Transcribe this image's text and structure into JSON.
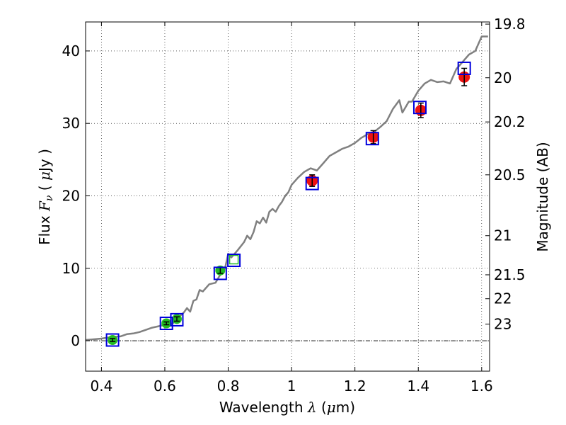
{
  "chart_data": {
    "type": "scatter",
    "xlabel": {
      "prefix": "Wavelength  ",
      "symbol": "λ",
      "unit_open": " (",
      "unit_mu": "μ",
      "unit_close": "m)"
    },
    "ylabel": {
      "prefix": "Flux  ",
      "symbol": "F",
      "subscript": "ν",
      "unit_open": "  (  ",
      "unit_mu": "μ",
      "unit_close": "Jy  )"
    },
    "ylabel_right": "Magnitude (AB)",
    "xlim": [
      0.35,
      1.625
    ],
    "ylim": [
      -4.2,
      44.0
    ],
    "grid": true,
    "x_ticks": [
      0.4,
      0.6,
      0.8,
      1.0,
      1.2,
      1.4,
      1.6
    ],
    "x_tick_labels": [
      "0.4",
      "0.6",
      "0.8",
      "1",
      "1.2",
      "1.4",
      "1.6"
    ],
    "y_ticks": [
      0,
      10,
      20,
      30,
      40
    ],
    "y_tick_labels": [
      "0",
      "10",
      "20",
      "30",
      "40"
    ],
    "mag_ticks": [
      {
        "label": "19.8",
        "flux": 43.7
      },
      {
        "label": "20",
        "flux": 36.3
      },
      {
        "label": "20.2",
        "flux": 30.2
      },
      {
        "label": "20.5",
        "flux": 22.9
      },
      {
        "label": "21",
        "flux": 14.5
      },
      {
        "label": "21.5",
        "flux": 9.1
      },
      {
        "label": "22",
        "flux": 5.8
      },
      {
        "label": "23",
        "flux": 2.3
      }
    ],
    "model_spectrum": {
      "color": "#808080",
      "x": [
        0.35,
        0.4,
        0.43,
        0.46,
        0.48,
        0.5,
        0.52,
        0.54,
        0.56,
        0.58,
        0.6,
        0.61,
        0.62,
        0.64,
        0.65,
        0.66,
        0.67,
        0.68,
        0.69,
        0.7,
        0.71,
        0.72,
        0.74,
        0.76,
        0.78,
        0.79,
        0.8,
        0.81,
        0.83,
        0.85,
        0.86,
        0.87,
        0.88,
        0.89,
        0.9,
        0.91,
        0.92,
        0.93,
        0.94,
        0.95,
        0.96,
        0.97,
        0.98,
        0.99,
        1.0,
        1.02,
        1.04,
        1.06,
        1.08,
        1.1,
        1.12,
        1.14,
        1.16,
        1.18,
        1.2,
        1.22,
        1.24,
        1.26,
        1.28,
        1.3,
        1.32,
        1.34,
        1.35,
        1.37,
        1.38,
        1.4,
        1.42,
        1.44,
        1.46,
        1.48,
        1.5,
        1.52,
        1.54,
        1.56,
        1.58,
        1.6,
        1.62
      ],
      "y": [
        0.1,
        0.3,
        0.5,
        0.6,
        0.9,
        1.0,
        1.2,
        1.5,
        1.8,
        2.0,
        2.2,
        2.4,
        2.3,
        2.8,
        3.5,
        3.9,
        4.5,
        4.0,
        5.5,
        5.7,
        7.0,
        6.8,
        7.8,
        8.0,
        9.5,
        10.0,
        12.0,
        11.5,
        12.5,
        13.6,
        14.5,
        14.0,
        15.0,
        16.5,
        16.2,
        17.0,
        16.3,
        17.8,
        18.2,
        17.8,
        18.6,
        19.2,
        20.0,
        20.5,
        21.5,
        22.5,
        23.3,
        23.8,
        23.5,
        24.5,
        25.5,
        26.0,
        26.5,
        26.8,
        27.3,
        28.0,
        28.5,
        28.8,
        29.5,
        30.3,
        32.0,
        33.2,
        31.5,
        33.0,
        33.0,
        34.5,
        35.5,
        36.0,
        35.7,
        35.8,
        35.5,
        37.5,
        38.5,
        39.5,
        40.0,
        42.0,
        42.0
      ]
    },
    "model_photometry": {
      "color": "#0000dd",
      "x": [
        0.435,
        0.605,
        0.638,
        0.775,
        0.818,
        1.065,
        1.255,
        1.405,
        1.545
      ],
      "y": [
        0.1,
        2.4,
        2.9,
        9.3,
        11.1,
        21.7,
        27.9,
        32.2,
        37.6
      ]
    },
    "observed_optical": {
      "color": "#22bb22",
      "x": [
        0.435,
        0.605,
        0.638,
        0.775
      ],
      "y": [
        0.1,
        2.4,
        3.0,
        9.7
      ],
      "yerr": [
        0.2,
        0.2,
        0.3,
        0.4
      ]
    },
    "observed_optical_open": {
      "color": "#22bb22",
      "x": [
        0.818
      ],
      "y": [
        11.2
      ]
    },
    "observed_nir": {
      "color": "#ee1111",
      "x": [
        1.065,
        1.258,
        1.408,
        1.545
      ],
      "y": [
        22.1,
        28.1,
        31.8,
        36.4
      ],
      "yerr": [
        0.8,
        0.9,
        1.0,
        1.2
      ]
    }
  }
}
